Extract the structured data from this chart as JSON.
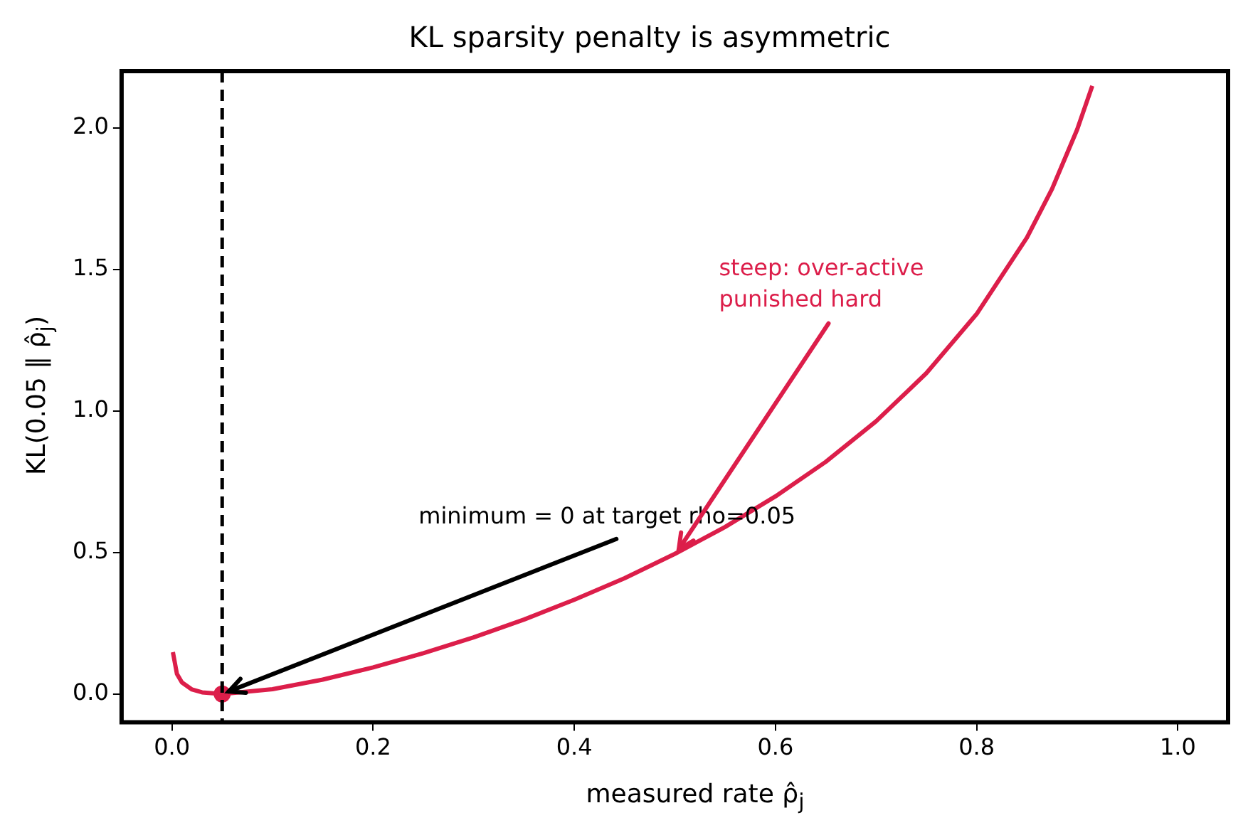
{
  "chart_data": {
    "type": "line",
    "title": "KL sparsity penalty is asymmetric",
    "xlabel": "measured rate  ρ̂$_{j}$",
    "ylabel": "KL(0.05 ‖ ρ̂$_{j}$)",
    "xlim": [
      -0.05,
      1.05
    ],
    "ylim": [
      -0.1,
      2.2
    ],
    "xticks": [
      {
        "value": 0,
        "label": "0.0"
      },
      {
        "value": 0.2,
        "label": "0.2"
      },
      {
        "value": 0.4,
        "label": "0.4"
      },
      {
        "value": 0.6,
        "label": "0.6"
      },
      {
        "value": 0.8,
        "label": "0.8"
      },
      {
        "value": 1,
        "label": "1.0"
      }
    ],
    "yticks": [
      {
        "value": 0,
        "label": "0.0"
      },
      {
        "value": 0.5,
        "label": "0.5"
      },
      {
        "value": 1,
        "label": "1.0"
      },
      {
        "value": 1.5,
        "label": "1.5"
      },
      {
        "value": 2,
        "label": "2.0"
      }
    ],
    "grid": false,
    "legend": false,
    "series": [
      {
        "color": "#dc1e4a",
        "marker": "none",
        "line_style": "solid",
        "x": [
          0.001,
          0.005,
          0.01,
          0.02,
          0.03,
          0.05,
          0.1,
          0.15,
          0.2,
          0.25,
          0.3,
          0.35,
          0.4,
          0.45,
          0.5,
          0.55,
          0.6,
          0.65,
          0.7,
          0.75,
          0.8,
          0.85,
          0.875,
          0.9,
          0.915
        ],
        "values": [
          0.148,
          0.071,
          0.041,
          0.016,
          0.006,
          0,
          0.017,
          0.051,
          0.094,
          0.144,
          0.2,
          0.263,
          0.333,
          0.409,
          0.495,
          0.59,
          0.698,
          0.82,
          0.963,
          1.133,
          1.342,
          1.612,
          1.784,
          1.994,
          2.148
        ]
      },
      {
        "type": "scatter",
        "color": "#dc1e4a",
        "marker": "circle",
        "x": [
          0.05
        ],
        "values": [
          0
        ]
      }
    ],
    "ref_lines": [
      {
        "axis": "x",
        "value": 0.05,
        "color": "#000000",
        "line_style": "dashed"
      }
    ],
    "annotations": [
      {
        "text": "minimum = 0 at target rho=0.05",
        "x": 0.05,
        "y": 0
      },
      {
        "text": "steep: over-active\npunished hard",
        "x": 0.5,
        "y": 0.49
      }
    ]
  }
}
